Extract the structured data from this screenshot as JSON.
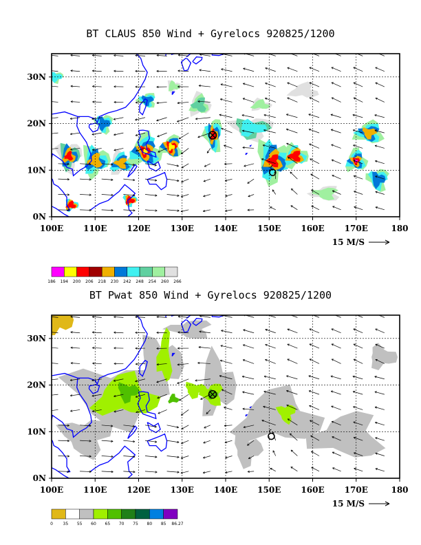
{
  "panel_top": {
    "title": "BT CLAUS 850 Wind + Gyrelocs 920825/1200",
    "x_ticks": [
      "100E",
      "110E",
      "120E",
      "130E",
      "140E",
      "150E",
      "160E",
      "170E",
      "180"
    ],
    "y_ticks": [
      "0N",
      "10N",
      "20N",
      "30N"
    ],
    "ref_vector_label": "15 M/S",
    "colorbar": {
      "colors": [
        "#ff00ff",
        "#ffff00",
        "#ff0000",
        "#a00000",
        "#f0b000",
        "#0078d8",
        "#40f0f0",
        "#60d0a0",
        "#a0f0a0",
        "#e0e0e0"
      ],
      "labels": [
        "186",
        "194",
        "200",
        "206",
        "218",
        "230",
        "242",
        "248",
        "254",
        "260",
        "266"
      ]
    },
    "storms": [
      {
        "lon": 137,
        "lat": 17.5,
        "symbol": "circle-x"
      },
      {
        "lon": 150.8,
        "lat": 9.5,
        "symbol": "circle"
      }
    ]
  },
  "panel_bottom": {
    "title": "BT Pwat 850 Wind + Gyrelocs 920825/1200",
    "x_ticks": [
      "100E",
      "110E",
      "120E",
      "130E",
      "140E",
      "150E",
      "160E",
      "170E",
      "180"
    ],
    "y_ticks": [
      "0N",
      "10N",
      "20N",
      "30N"
    ],
    "ref_vector_label": "15 M/S",
    "colorbar": {
      "colors": [
        "#e0b818",
        "#ffffff",
        "#c0c0c0",
        "#a0f000",
        "#50c000",
        "#208018",
        "#006040",
        "#0080e0",
        "#8000c0"
      ],
      "labels": [
        "0",
        "35",
        "55",
        "60",
        "65",
        "70",
        "75",
        "80",
        "85",
        "86.27"
      ]
    },
    "storms": [
      {
        "lon": 137,
        "lat": 18,
        "symbol": "circle-x"
      },
      {
        "lon": 150.5,
        "lat": 9,
        "symbol": "circle"
      }
    ]
  }
}
